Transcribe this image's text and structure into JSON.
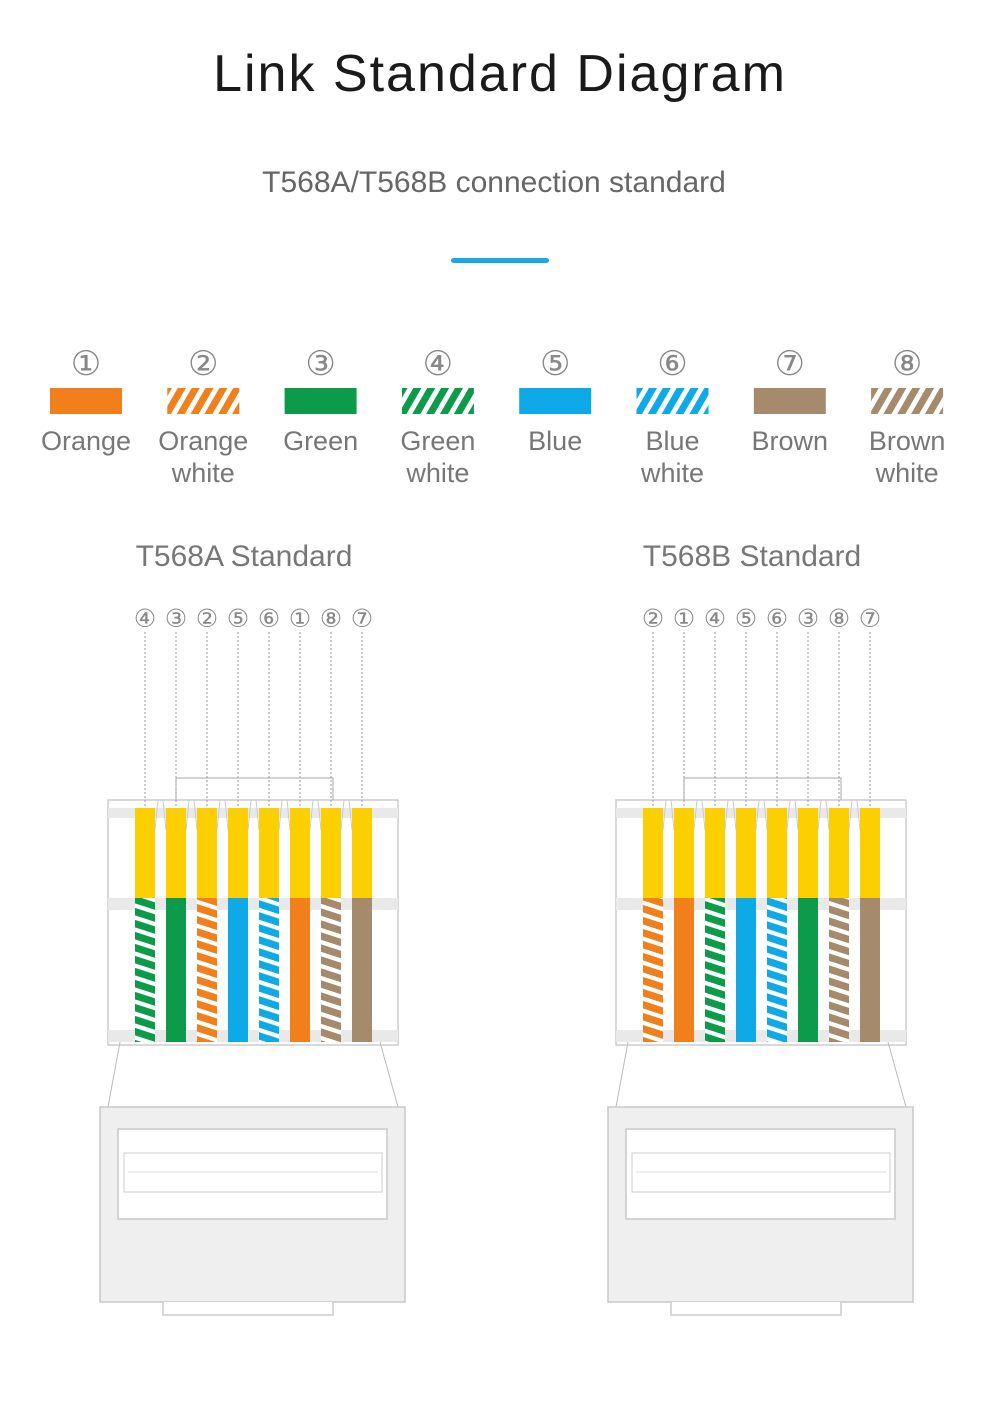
{
  "title": "Link Standard Diagram",
  "subtitle": "T568A/T568B connection standard",
  "colors": {
    "accent": "#1aa7e8",
    "orange": "#f07f1c",
    "green": "#0b9b4a",
    "blue": "#0eaae8",
    "brown": "#a58a6c",
    "contact": "#fccf00"
  },
  "legend": [
    {
      "number": "①",
      "name": "Orange",
      "lines": [
        "Orange"
      ],
      "color": "orange",
      "striped": false
    },
    {
      "number": "②",
      "name": "Orange white",
      "lines": [
        "Orange",
        "white"
      ],
      "color": "orange",
      "striped": true
    },
    {
      "number": "③",
      "name": "Green",
      "lines": [
        "Green"
      ],
      "color": "green",
      "striped": false
    },
    {
      "number": "④",
      "name": "Green white",
      "lines": [
        "Green",
        "white"
      ],
      "color": "green",
      "striped": true
    },
    {
      "number": "⑤",
      "name": "Blue",
      "lines": [
        "Blue"
      ],
      "color": "blue",
      "striped": false
    },
    {
      "number": "⑥",
      "name": "Blue white",
      "lines": [
        "Blue",
        "white"
      ],
      "color": "blue",
      "striped": true
    },
    {
      "number": "⑦",
      "name": "Brown",
      "lines": [
        "Brown"
      ],
      "color": "brown",
      "striped": false
    },
    {
      "number": "⑧",
      "name": "Brown white",
      "lines": [
        "Brown",
        "white"
      ],
      "color": "brown",
      "striped": true
    }
  ],
  "standards": [
    {
      "title": "T568A Standard",
      "order": [
        4,
        3,
        2,
        5,
        6,
        1,
        8,
        7
      ]
    },
    {
      "title": "T568B Standard",
      "order": [
        2,
        1,
        4,
        5,
        6,
        3,
        8,
        7
      ]
    }
  ]
}
